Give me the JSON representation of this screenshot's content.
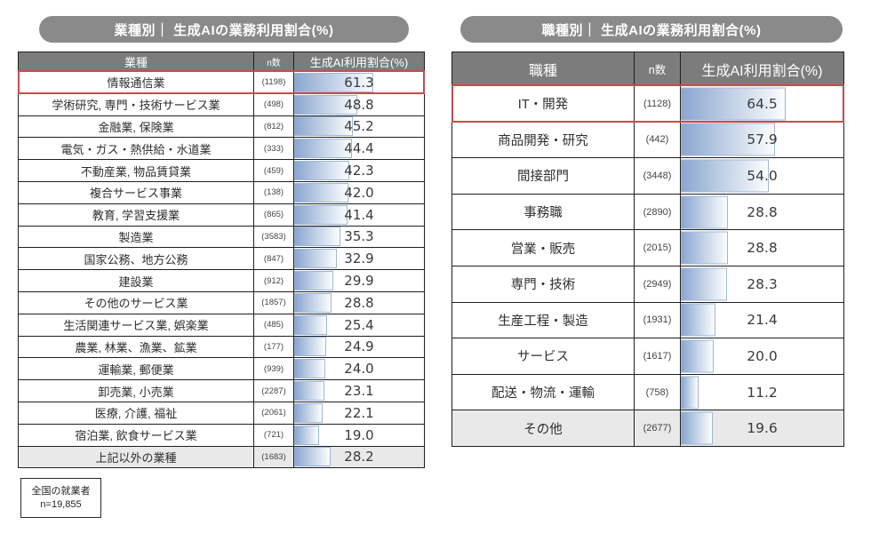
{
  "colors": {
    "pill_bg": "#8a8a8a",
    "table_header_bg": "#7c7c7c",
    "bar_gradient_start": "#8ba6d0",
    "bar_gradient_mid": "#c9d7e9",
    "bar_gradient_end": "#fbfdfe",
    "bar_border": "#9db7d8",
    "highlight_red": "#c94b4b",
    "muted_row_bg": "#e9e9e9",
    "grid_line": "#1f1f1f"
  },
  "chart_data": [
    {
      "type": "bar",
      "orientation": "horizontal",
      "title": "業種別｜ 生成AIの業務利用割合(%)",
      "col_category": "業種",
      "col_n": "n数",
      "col_value": "生成AI利用割合(%)",
      "xlim": [
        0,
        100
      ],
      "highlight_rows": [
        0
      ],
      "muted_rows": [
        17
      ],
      "categories": [
        "情報通信業",
        "学術研究, 専門・技術サービス業",
        "金融業, 保険業",
        "電気・ガス・熱供給・水道業",
        "不動産業, 物品賃貸業",
        "複合サービス事業",
        "教育, 学習支援業",
        "製造業",
        "国家公務、地方公務",
        "建設業",
        "その他のサービス業",
        "生活関連サービス業, 娯楽業",
        "農業, 林業、漁業、鉱業",
        "運輸業, 郵便業",
        "卸売業, 小売業",
        "医療, 介護, 福祉",
        "宿泊業, 飲食サービス業",
        "上記以外の業種"
      ],
      "n_values": [
        1198,
        498,
        812,
        333,
        459,
        138,
        865,
        3583,
        847,
        912,
        1857,
        485,
        177,
        939,
        2287,
        2061,
        721,
        1683
      ],
      "values": [
        61.3,
        48.8,
        45.2,
        44.4,
        42.3,
        42.0,
        41.4,
        35.3,
        32.9,
        29.9,
        28.8,
        25.4,
        24.9,
        24.0,
        23.1,
        22.1,
        19.0,
        28.2
      ]
    },
    {
      "type": "bar",
      "orientation": "horizontal",
      "title": "職種別｜ 生成AIの業務利用割合(%)",
      "col_category": "職種",
      "col_n": "n数",
      "col_value": "生成AI利用割合(%)",
      "xlim": [
        0,
        100
      ],
      "highlight_rows": [
        0
      ],
      "muted_rows": [
        9
      ],
      "categories": [
        "IT・開発",
        "商品開発・研究",
        "間接部門",
        "事務職",
        "営業・販売",
        "専門・技術",
        "生産工程・製造",
        "サービス",
        "配送・物流・運輸",
        "その他"
      ],
      "n_values": [
        1128,
        442,
        3448,
        2890,
        2015,
        2949,
        1931,
        1617,
        758,
        2677
      ],
      "values": [
        64.5,
        57.9,
        54.0,
        28.8,
        28.8,
        28.3,
        21.4,
        20.0,
        11.2,
        19.6
      ]
    }
  ],
  "footnote": {
    "line1": "全国の就業者",
    "line2": "n=19,855"
  }
}
